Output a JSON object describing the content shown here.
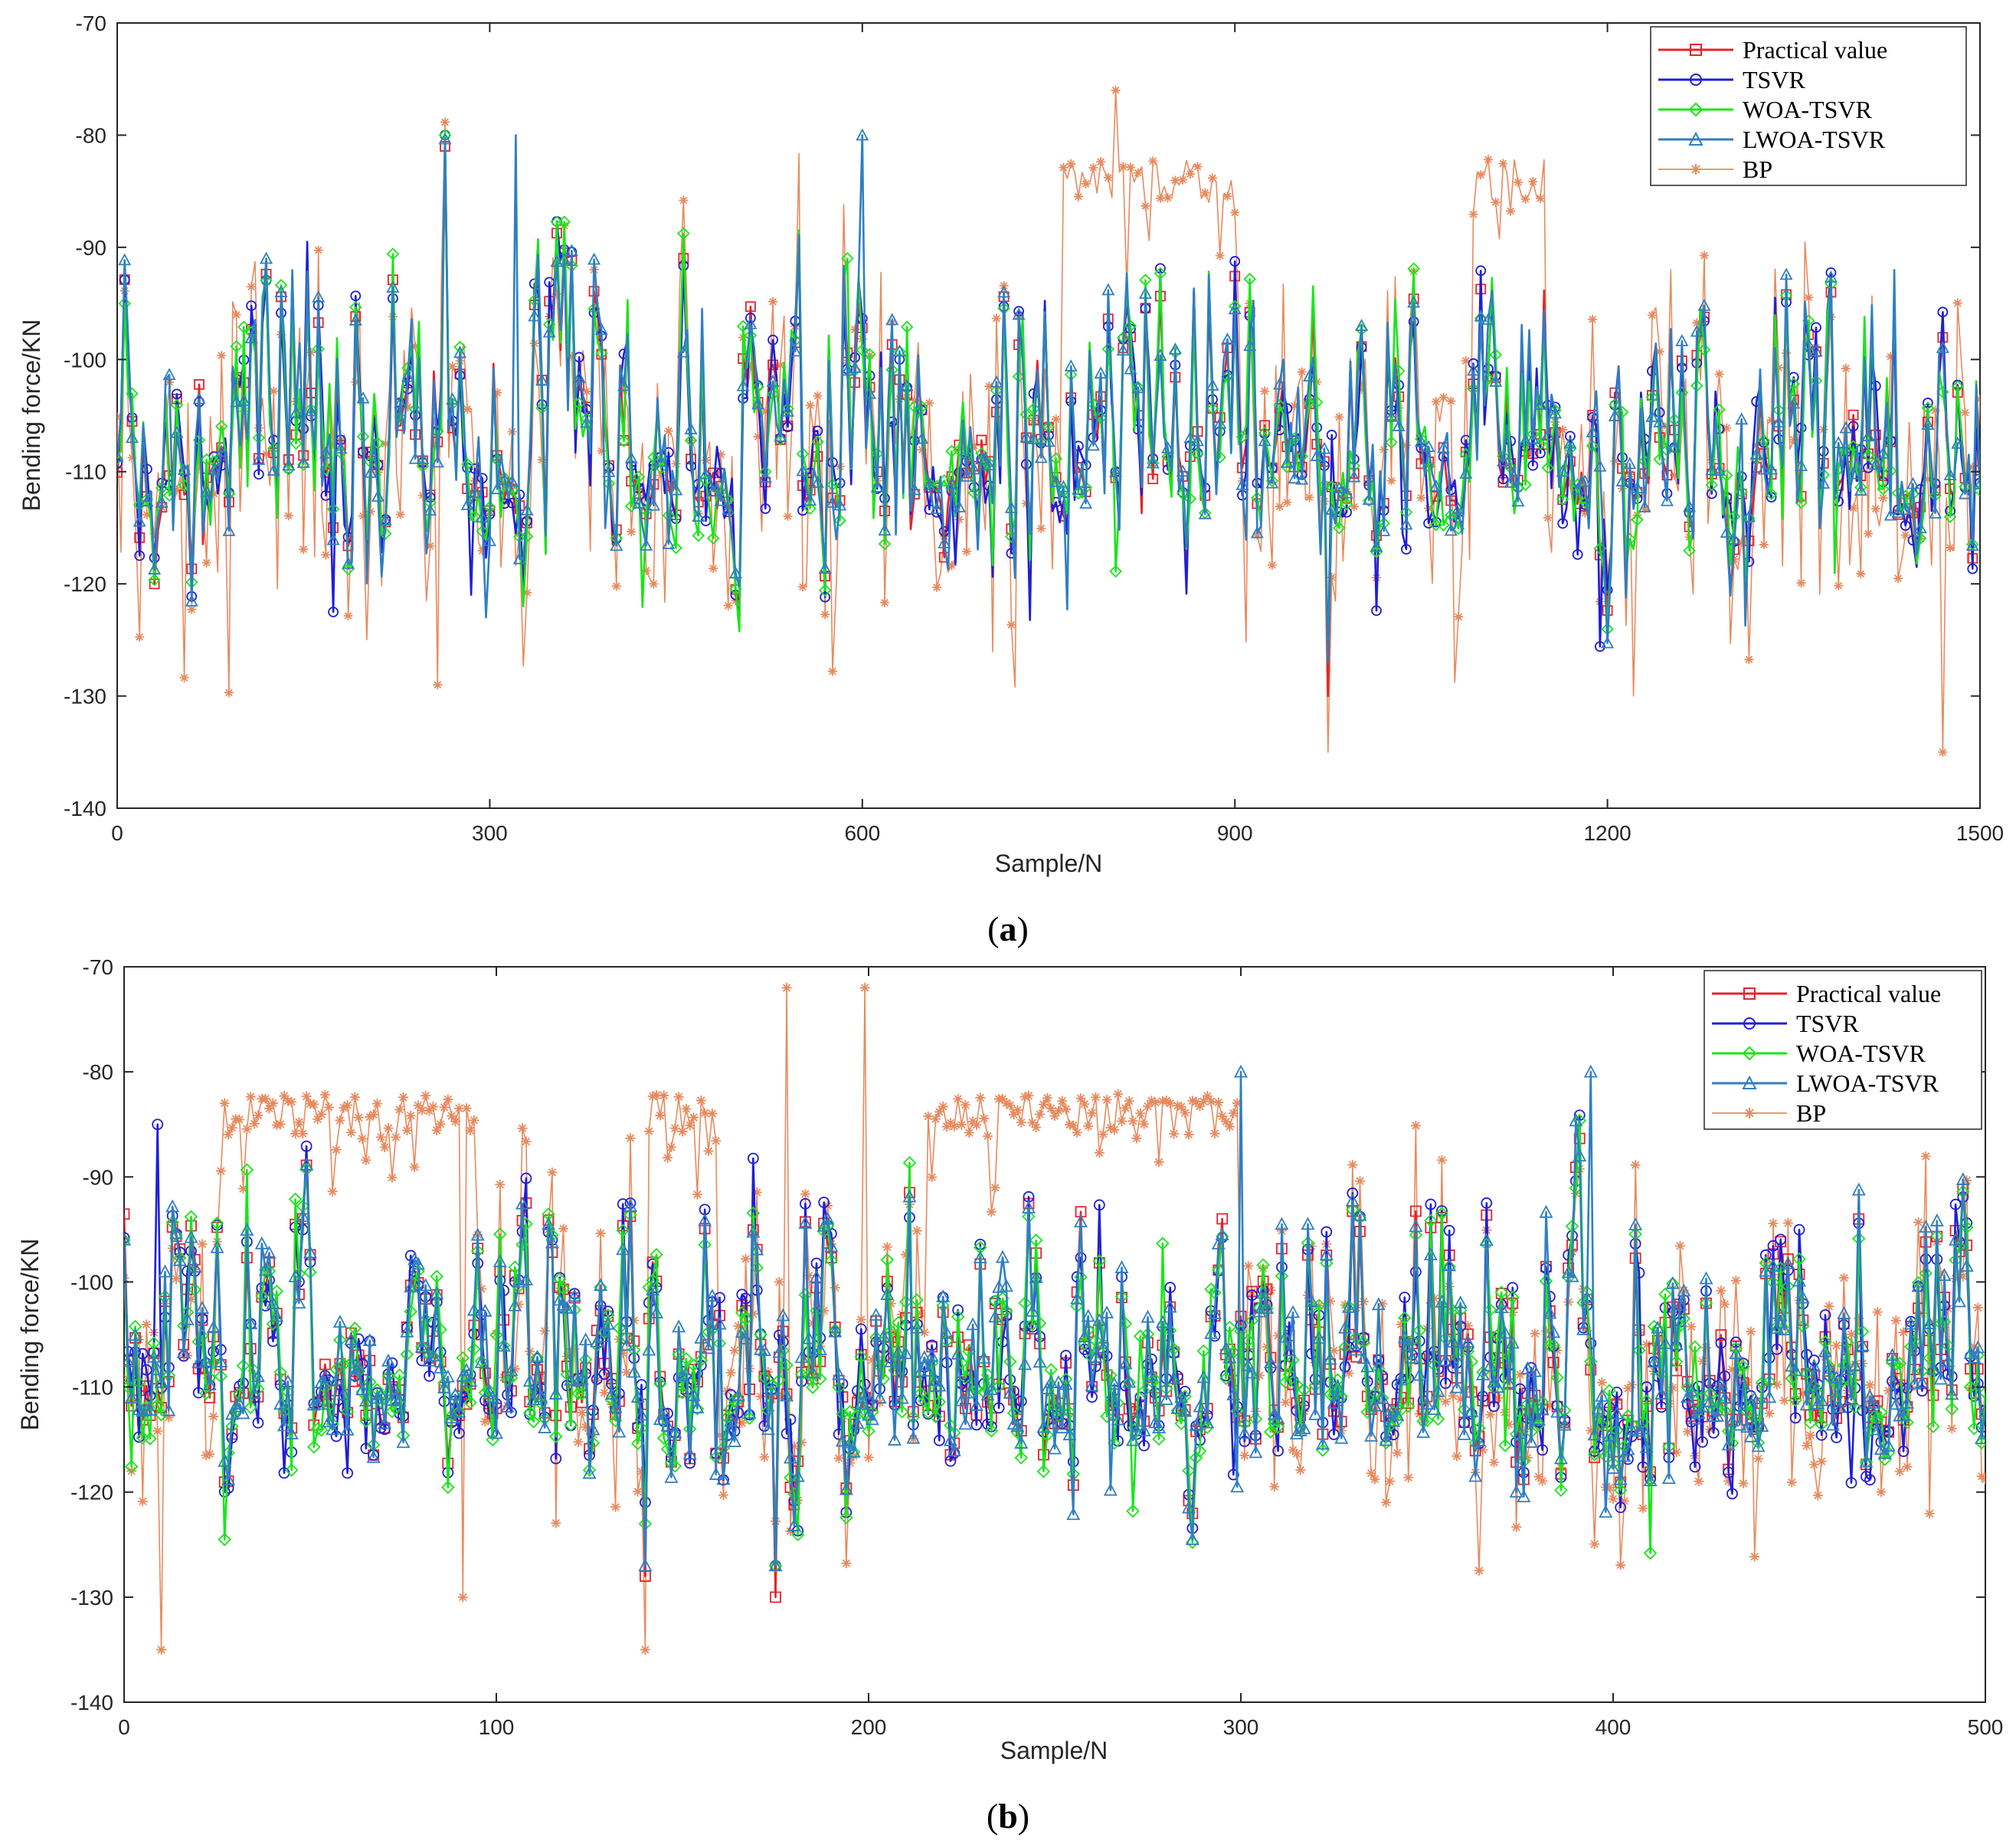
{
  "figure": {
    "captions": {
      "a": "a",
      "b": "b"
    }
  },
  "series_styles": [
    {
      "name": "Practical value",
      "color": "#e8212b",
      "marker": "square"
    },
    {
      "name": "TSVR",
      "color": "#1f1fd6",
      "marker": "circle"
    },
    {
      "name": "WOA-TSVR",
      "color": "#19e619",
      "marker": "diamond"
    },
    {
      "name": "LWOA-TSVR",
      "color": "#2f7fc1",
      "marker": "triangle"
    },
    {
      "name": "BP",
      "color": "#e88a5e",
      "marker": "star"
    }
  ],
  "chart_data": [
    {
      "id": "a",
      "type": "line",
      "xlabel": "Sample/N",
      "ylabel": "Bending force/KN",
      "xlim": [
        0,
        1500
      ],
      "ylim": [
        -140,
        -70
      ],
      "xticks": [
        0,
        300,
        600,
        900,
        1200,
        1500
      ],
      "yticks": [
        -70,
        -80,
        -90,
        -100,
        -110,
        -120,
        -130,
        -140
      ],
      "legend_position": "top-right",
      "n_samples": 1500,
      "series": [
        {
          "name": "Practical value",
          "note": "dense fluctuating signal between about -130 and -81"
        },
        {
          "name": "TSVR",
          "note": "tracks practical value, range about -126 to -85"
        },
        {
          "name": "WOA-TSVR",
          "note": "tracks practical value, range about -127 to -83"
        },
        {
          "name": "LWOA-TSVR",
          "note": "tracks practical value, range about -126 to -80"
        },
        {
          "name": "BP",
          "note": "noisier, elevated band near -80 to -85 around samples 750-900 and 1080-1150, minimum about -135"
        }
      ],
      "key_points": [
        {
          "series": "BP",
          "x": 805,
          "y": -76
        },
        {
          "series": "BP",
          "x": 1470,
          "y": -135
        },
        {
          "series": "Practical value",
          "x": 975,
          "y": -130
        },
        {
          "series": "LWOA-TSVR",
          "x": 320,
          "y": -80
        },
        {
          "series": "LWOA-TSVR",
          "x": 600,
          "y": -80
        },
        {
          "series": "Practical value",
          "x": 265,
          "y": -81
        },
        {
          "series": "BP",
          "x": 1220,
          "y": -130
        },
        {
          "series": "BP",
          "x": 258,
          "y": -129
        }
      ]
    },
    {
      "id": "b",
      "type": "line",
      "xlabel": "Sample/N",
      "ylabel": "Bending force/KN",
      "xlim": [
        0,
        500
      ],
      "ylim": [
        -140,
        -70
      ],
      "xticks": [
        0,
        100,
        200,
        300,
        400,
        500
      ],
      "yticks": [
        -70,
        -80,
        -90,
        -100,
        -110,
        -120,
        -130,
        -140
      ],
      "legend_position": "top-right",
      "n_samples": 500,
      "series": [
        {
          "name": "Practical value",
          "note": "fluctuating signal between about -130 and -81"
        },
        {
          "name": "TSVR",
          "note": "tracks practical value"
        },
        {
          "name": "WOA-TSVR",
          "note": "tracks practical value"
        },
        {
          "name": "LWOA-TSVR",
          "note": "tracks practical value, peaks near -80"
        },
        {
          "name": "BP",
          "note": "elevated arcs near -80 over samples 25-95 and 215-300, maximum about -72, minimum about -135"
        }
      ],
      "key_points": [
        {
          "series": "BP",
          "x": 178,
          "y": -72
        },
        {
          "series": "BP",
          "x": 199,
          "y": -72
        },
        {
          "series": "BP",
          "x": 10,
          "y": -135
        },
        {
          "series": "BP",
          "x": 91,
          "y": -130
        },
        {
          "series": "Practical value",
          "x": 175,
          "y": -130
        },
        {
          "series": "Practical value",
          "x": 140,
          "y": -128
        },
        {
          "series": "TSVR",
          "x": 9,
          "y": -85
        },
        {
          "series": "LWOA-TSVR",
          "x": 394,
          "y": -80
        },
        {
          "series": "LWOA-TSVR",
          "x": 300,
          "y": -80
        }
      ]
    }
  ]
}
